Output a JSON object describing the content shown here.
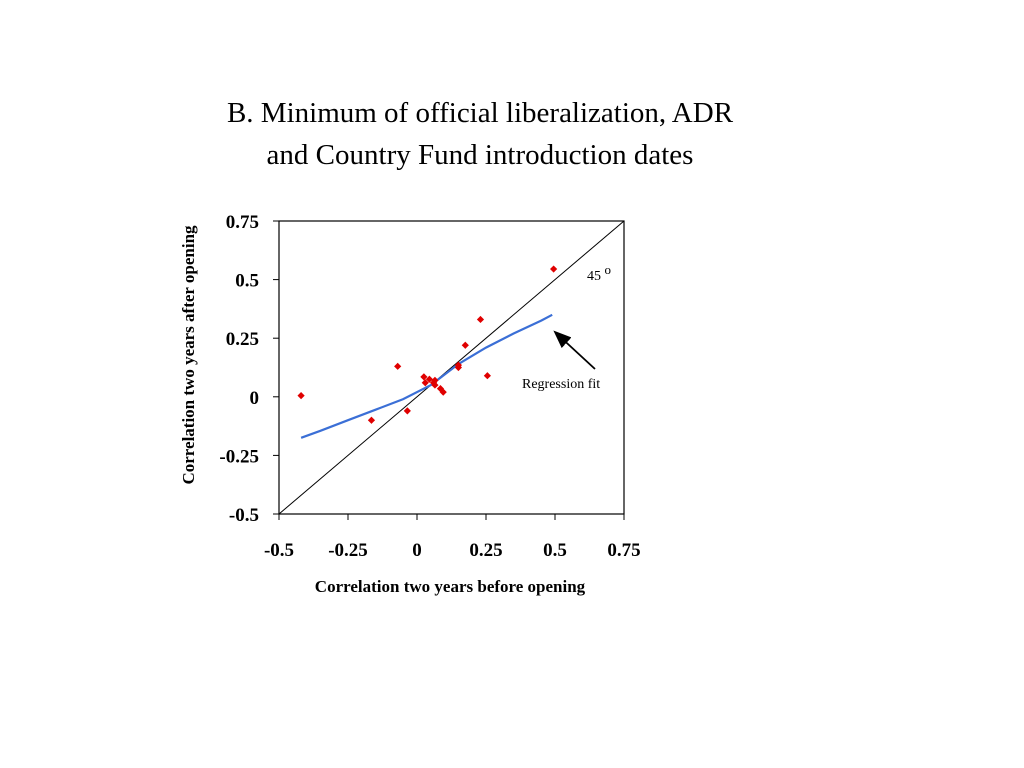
{
  "chart_data": {
    "type": "scatter",
    "title_line1": "B. Minimum of official liberalization, ADR",
    "title_line2": "and Country Fund introduction dates",
    "xlabel": "Correlation two years before opening",
    "ylabel": "Correlation two years after opening",
    "xlim": [
      -0.5,
      0.75
    ],
    "ylim": [
      -0.5,
      0.75
    ],
    "xticks": [
      "-0.5",
      "-0.25",
      "0",
      "0.25",
      "0.5",
      "0.75"
    ],
    "yticks": [
      "0.75",
      "0.5",
      "0.25",
      "0",
      "-0.25",
      "-0.5"
    ],
    "xtick_values": [
      -0.5,
      -0.25,
      0,
      0.25,
      0.5,
      0.75
    ],
    "ytick_values": [
      0.75,
      0.5,
      0.25,
      0,
      -0.25,
      -0.5
    ],
    "grid": false,
    "points": [
      {
        "x": -0.42,
        "y": 0.005
      },
      {
        "x": -0.165,
        "y": -0.1
      },
      {
        "x": -0.07,
        "y": 0.13
      },
      {
        "x": -0.035,
        "y": -0.06
      },
      {
        "x": 0.025,
        "y": 0.085
      },
      {
        "x": 0.03,
        "y": 0.06
      },
      {
        "x": 0.045,
        "y": 0.075
      },
      {
        "x": 0.06,
        "y": 0.06
      },
      {
        "x": 0.065,
        "y": 0.05
      },
      {
        "x": 0.065,
        "y": 0.07
      },
      {
        "x": 0.085,
        "y": 0.035
      },
      {
        "x": 0.095,
        "y": 0.02
      },
      {
        "x": 0.15,
        "y": 0.125
      },
      {
        "x": 0.15,
        "y": 0.135
      },
      {
        "x": 0.175,
        "y": 0.22
      },
      {
        "x": 0.23,
        "y": 0.33
      },
      {
        "x": 0.255,
        "y": 0.09
      },
      {
        "x": 0.495,
        "y": 0.545
      }
    ],
    "regression_line": {
      "x": [
        -0.42,
        -0.35,
        -0.25,
        -0.15,
        -0.05,
        0.05,
        0.15,
        0.25,
        0.35,
        0.45,
        0.49
      ],
      "y": [
        -0.175,
        -0.145,
        -0.1,
        -0.055,
        -0.01,
        0.05,
        0.14,
        0.21,
        0.27,
        0.325,
        0.35
      ]
    },
    "reference_line": {
      "x": [
        -0.5,
        0.75
      ],
      "y": [
        -0.5,
        0.75
      ]
    },
    "annotations": {
      "angle_label": "45",
      "angle_symbol": "o",
      "regression_label": "Regression fit"
    },
    "colors": {
      "points": "#e00000",
      "regression": "#3b6fd6",
      "reference": "#000000",
      "axes": "#000000"
    }
  }
}
